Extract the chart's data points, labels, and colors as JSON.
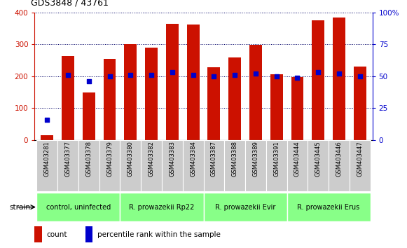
{
  "title": "GDS3848 / 43761",
  "samples": [
    "GSM403281",
    "GSM403377",
    "GSM403378",
    "GSM403379",
    "GSM403380",
    "GSM403382",
    "GSM403383",
    "GSM403384",
    "GSM403387",
    "GSM403388",
    "GSM403389",
    "GSM403391",
    "GSM403444",
    "GSM403445",
    "GSM403446",
    "GSM403447"
  ],
  "counts": [
    15,
    263,
    150,
    255,
    300,
    290,
    365,
    362,
    228,
    260,
    298,
    207,
    197,
    375,
    385,
    230
  ],
  "percentile": [
    16,
    51,
    46,
    50,
    51,
    51,
    53,
    51,
    50,
    51,
    52,
    50,
    49,
    53,
    52,
    50
  ],
  "groups": [
    {
      "label": "control, uninfected",
      "start": 0,
      "end": 3
    },
    {
      "label": "R. prowazekii Rp22",
      "start": 4,
      "end": 7
    },
    {
      "label": "R. prowazekii Evir",
      "start": 8,
      "end": 11
    },
    {
      "label": "R. prowazekii Erus",
      "start": 12,
      "end": 15
    }
  ],
  "group_color": "#88ff88",
  "ylim_left": [
    0,
    400
  ],
  "ylim_right": [
    0,
    100
  ],
  "yticks_left": [
    0,
    100,
    200,
    300,
    400
  ],
  "yticks_right": [
    0,
    25,
    50,
    75,
    100
  ],
  "ytick_labels_right": [
    "0",
    "25",
    "50",
    "75",
    "100%"
  ],
  "bar_color": "#cc1100",
  "dot_color": "#0000cc",
  "grid_color": "#000066",
  "background_color": "#ffffff",
  "tick_label_bg": "#cccccc",
  "legend_count_label": "count",
  "legend_pct_label": "percentile rank within the sample",
  "strain_label": "strain",
  "left_axis_color": "#cc1100",
  "right_axis_color": "#0000cc",
  "title_fontsize": 9,
  "bar_width": 0.6
}
